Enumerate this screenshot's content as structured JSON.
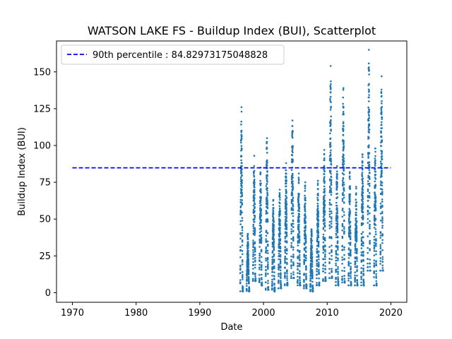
{
  "chart_data": {
    "type": "scatter",
    "title": "WATSON LAKE FS - Buildup Index (BUI), Scatterplot",
    "xlabel": "Date",
    "ylabel": "Buildup Index (BUI)",
    "xlim": [
      1967.5,
      2022.5
    ],
    "ylim": [
      -6.5,
      171
    ],
    "x_ticks": [
      1970,
      1980,
      1990,
      2000,
      2010,
      2020
    ],
    "y_ticks": [
      0,
      25,
      50,
      75,
      100,
      125,
      150
    ],
    "grid": false,
    "legend_position": "top-left",
    "reference_line": {
      "label": "90th percentile : 84.82973175048828",
      "value": 84.82973175048828,
      "x_range": [
        1970,
        2020
      ],
      "color": "#0000ff",
      "style": "dashed"
    },
    "series": [
      {
        "color": "#1f77b4",
        "note_seasons": "Each fire season (approx. May–Sep) forms a vertical band of daily points from low to the seasonal peak.",
        "seasons": [
          {
            "year": 1996,
            "min": 1,
            "max": 126
          },
          {
            "year": 1997,
            "min": 1,
            "max": 40
          },
          {
            "year": 1998,
            "min": 8,
            "max": 93
          },
          {
            "year": 1999,
            "min": 5,
            "max": 85
          },
          {
            "year": 2000,
            "min": 2,
            "max": 105
          },
          {
            "year": 2001,
            "min": 1,
            "max": 63
          },
          {
            "year": 2002,
            "min": 3,
            "max": 70
          },
          {
            "year": 2003,
            "min": 5,
            "max": 88
          },
          {
            "year": 2004,
            "min": 10,
            "max": 117
          },
          {
            "year": 2005,
            "min": 5,
            "max": 81
          },
          {
            "year": 2006,
            "min": 3,
            "max": 75
          },
          {
            "year": 2007,
            "min": 1,
            "max": 43
          },
          {
            "year": 2008,
            "min": 5,
            "max": 76
          },
          {
            "year": 2009,
            "min": 8,
            "max": 97
          },
          {
            "year": 2010,
            "min": 10,
            "max": 154
          },
          {
            "year": 2011,
            "min": 5,
            "max": 86
          },
          {
            "year": 2012,
            "min": 7,
            "max": 139
          },
          {
            "year": 2013,
            "min": 5,
            "max": 82
          },
          {
            "year": 2014,
            "min": 5,
            "max": 72
          },
          {
            "year": 2015,
            "min": 5,
            "max": 94
          },
          {
            "year": 2016,
            "min": 15,
            "max": 165
          },
          {
            "year": 2017,
            "min": 5,
            "max": 98
          },
          {
            "year": 2018,
            "min": 15,
            "max": 147
          }
        ]
      }
    ]
  }
}
